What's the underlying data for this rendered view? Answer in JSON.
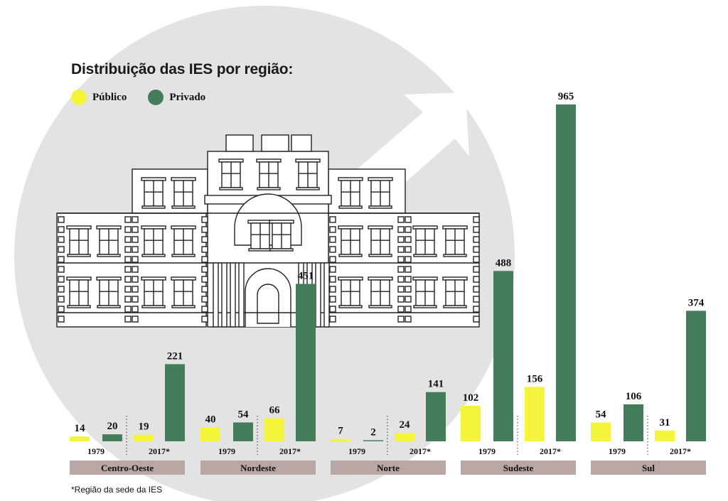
{
  "title": "Distribuição das IES por região:",
  "legend": {
    "public_label": "Público",
    "private_label": "Privado"
  },
  "footnote": "*Região da sede da IES",
  "colors": {
    "public": "#f4f53a",
    "private": "#457c59",
    "region_band": "#b9a7a6",
    "circle": "#e3e3e3",
    "building_stroke": "#222222"
  },
  "illustration": {
    "building-icon": "building-icon",
    "arrow": "up-right-arrow-icon"
  },
  "chart_data": {
    "type": "bar",
    "title": "Distribuição das IES por região:",
    "series_names": [
      "Público",
      "Privado"
    ],
    "year_labels": [
      "1979",
      "2017*"
    ],
    "regions": [
      {
        "name": "Centro-Oeste",
        "years": [
          {
            "label": "1979",
            "public": 14,
            "private": 20
          },
          {
            "label": "2017*",
            "public": 19,
            "private": 221
          }
        ]
      },
      {
        "name": "Nordeste",
        "years": [
          {
            "label": "1979",
            "public": 40,
            "private": 54
          },
          {
            "label": "2017*",
            "public": 66,
            "private": 451
          }
        ]
      },
      {
        "name": "Norte",
        "years": [
          {
            "label": "1979",
            "public": 7,
            "private": 2
          },
          {
            "label": "2017*",
            "public": 24,
            "private": 141
          }
        ]
      },
      {
        "name": "Sudeste",
        "years": [
          {
            "label": "1979",
            "public": 102,
            "private": 488
          },
          {
            "label": "2017*",
            "public": 156,
            "private": 965
          }
        ]
      },
      {
        "name": "Sul",
        "years": [
          {
            "label": "1979",
            "public": 54,
            "private": 106
          },
          {
            "label": "2017*",
            "public": 31,
            "private": 374
          }
        ]
      }
    ],
    "ylim": [
      0,
      1000
    ],
    "grid": false,
    "legend_position": "top-left"
  }
}
